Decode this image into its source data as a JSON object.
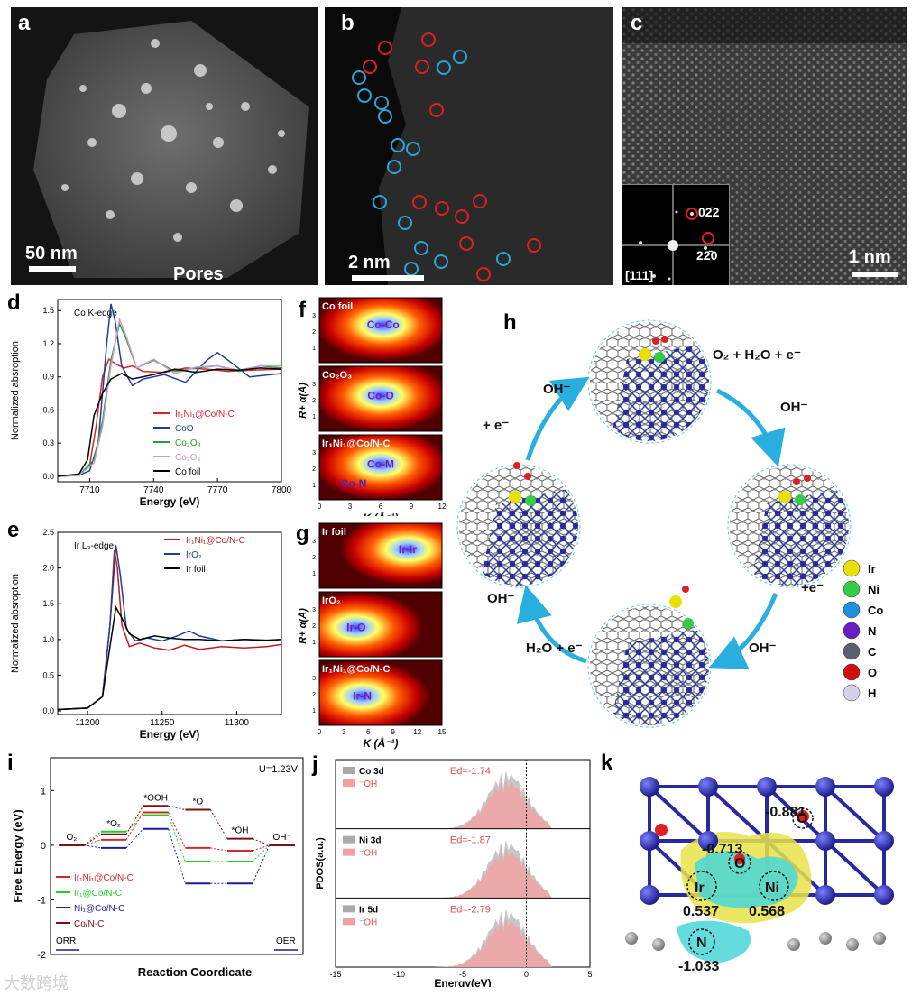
{
  "panels": {
    "a": {
      "label": "a",
      "scale": "50 nm",
      "pores": "Pores"
    },
    "b": {
      "label": "b",
      "scale": "2 nm"
    },
    "c": {
      "label": "c",
      "scale": "1 nm",
      "inset_axis": "[111]",
      "spot1": "02̄2",
      "spot2": "22̄0"
    },
    "d": {
      "label": "d",
      "edge": "Co K-edge",
      "ylabel": "Normalized absroption",
      "xlabel": "Energy (eV)",
      "xticks": [
        "7710",
        "7740",
        "7770",
        "7800"
      ],
      "yticks": [
        "0.0",
        "0.3",
        "0.6",
        "0.9",
        "1.2",
        "1.5"
      ],
      "legend": [
        "Ir₁Ni₁@Co/N-C",
        "CoO",
        "Co₃O₄",
        "Co₂O₃",
        "Co foil"
      ]
    },
    "e": {
      "label": "e",
      "edge": "Ir L₃-edge",
      "ylabel": "Normalized absroption",
      "xlabel": "Energy (eV)",
      "xticks": [
        "11200",
        "11250",
        "11300"
      ],
      "yticks": [
        "0.0",
        "0.5",
        "1.0",
        "1.5",
        "2.0",
        "2.5"
      ],
      "legend": [
        "Ir₁Ni₁@Co/N-C",
        "IrO₂",
        "Ir foil"
      ]
    },
    "f": {
      "label": "f",
      "ylabel": "R+ α(Å)",
      "xlabel": "K (Å⁻¹)",
      "xticks": [
        "0",
        "3",
        "6",
        "9",
        "12"
      ],
      "maps": [
        {
          "title": "Co foil",
          "peak": "Co-Co"
        },
        {
          "title": "Co₂O₃",
          "peak": "Co-O"
        },
        {
          "title": "Ir₁Ni₁@Co/N-C",
          "peak": "Co-M",
          "peak2": "Co-N"
        }
      ]
    },
    "g": {
      "label": "g",
      "ylabel": "R+ α(Å)",
      "xlabel": "K (Å⁻¹)",
      "xticks": [
        "0",
        "3",
        "6",
        "9",
        "12",
        "15"
      ],
      "maps": [
        {
          "title": "Ir foil",
          "peak": "Ir-Ir"
        },
        {
          "title": "IrO₂",
          "peak": "Ir-O"
        },
        {
          "title": "Ir₁Ni₁@Co/N-C",
          "peak": "Ir-N"
        }
      ]
    },
    "h": {
      "label": "h",
      "steps": [
        "O₂ + H₂O + e⁻",
        "OH⁻",
        "+e⁻",
        "OH⁻",
        "H₂O + e⁻",
        "OH⁻",
        "+ e⁻",
        "OH⁻"
      ],
      "legend": [
        "Ir",
        "Ni",
        "Co",
        "N",
        "C",
        "O",
        "H"
      ]
    },
    "i": {
      "label": "i",
      "potential": "U=1.23V",
      "ylabel": "Free Energy (eV)",
      "xlabel": "Reaction Coordicate",
      "yticks": [
        "1",
        "0",
        "-1",
        "-2"
      ],
      "species": [
        "O₂",
        "*O₂",
        "*OOH",
        "*O",
        "*OH",
        "OH⁻"
      ],
      "orr": "ORR",
      "oer": "OER",
      "legend": [
        "Ir₁Ni₁@Co/N-C",
        "Ir₁@Co/N-C",
        "Ni₁@Co/N-C",
        "Co/N-C"
      ]
    },
    "j": {
      "label": "j",
      "ylabel": "PDOS(a.u.)",
      "xlabel": "Energy(eV)",
      "xticks": [
        "-15",
        "-10",
        "-5",
        "0",
        "5"
      ],
      "rows": [
        {
          "orb": "Co 3d",
          "ads": "⁻OH",
          "ed": "Ed=-1.74"
        },
        {
          "orb": "Ni 3d",
          "ads": "⁻OH",
          "ed": "Ed=-1.87"
        },
        {
          "orb": "Ir 5d",
          "ads": "⁻OH",
          "ed": "Ed=-2.79"
        }
      ]
    },
    "k": {
      "label": "k",
      "charges": [
        "-0.881",
        "-0.713",
        "0.537",
        "0.568",
        "-1.033"
      ],
      "atoms": [
        "Ir",
        "Ni",
        "O",
        "O",
        "N"
      ]
    }
  },
  "watermark": "大数跨境",
  "chart_data": [
    {
      "type": "line",
      "title": "Co K-edge",
      "xlabel": "Energy (eV)",
      "ylabel": "Normalized absroption",
      "xlim": [
        7695,
        7800
      ],
      "ylim": [
        -0.05,
        1.6
      ],
      "series": [
        {
          "name": "Ir₁Ni₁@Co/N-C",
          "color": "#d62728",
          "x": [
            7695,
            7705,
            7710,
            7713,
            7716,
            7719,
            7722,
            7726,
            7730,
            7735,
            7745,
            7755,
            7765,
            7775,
            7785,
            7800
          ],
          "y": [
            0,
            0.01,
            0.1,
            0.45,
            0.9,
            1.06,
            1.02,
            0.98,
            1.0,
            0.95,
            0.94,
            0.98,
            0.97,
            0.95,
            0.96,
            0.97
          ]
        },
        {
          "name": "CoO",
          "color": "#1f3c9c",
          "x": [
            7695,
            7705,
            7710,
            7714,
            7718,
            7720,
            7722,
            7725,
            7730,
            7735,
            7745,
            7755,
            7765,
            7770,
            7775,
            7785,
            7800
          ],
          "y": [
            0,
            0.01,
            0.05,
            0.3,
            1.2,
            1.56,
            1.4,
            1.0,
            0.82,
            0.88,
            0.92,
            0.85,
            1.05,
            1.12,
            1.05,
            0.9,
            0.93
          ]
        },
        {
          "name": "Co₃O₄",
          "color": "#2ca02c",
          "x": [
            7695,
            7705,
            7712,
            7716,
            7720,
            7724,
            7727,
            7732,
            7740,
            7750,
            7760,
            7770,
            7780,
            7790,
            7800
          ],
          "y": [
            0,
            0.01,
            0.15,
            0.5,
            1.05,
            1.38,
            1.25,
            0.98,
            1.05,
            0.95,
            0.98,
            1.0,
            0.95,
            1.0,
            0.98
          ]
        },
        {
          "name": "Co₂O₃",
          "color": "#c59ee0",
          "x": [
            7695,
            7705,
            7712,
            7716,
            7720,
            7724,
            7727,
            7732,
            7740,
            7750,
            7760,
            7770,
            7780,
            7790,
            7800
          ],
          "y": [
            0,
            0.01,
            0.12,
            0.45,
            1.0,
            1.42,
            1.28,
            0.98,
            1.06,
            0.93,
            0.99,
            1.0,
            0.96,
            1.0,
            1.0
          ]
        },
        {
          "name": "Co foil",
          "color": "#000000",
          "x": [
            7695,
            7705,
            7709,
            7712,
            7716,
            7720,
            7725,
            7730,
            7740,
            7750,
            7760,
            7770,
            7780,
            7790,
            7800
          ],
          "y": [
            0,
            0.02,
            0.15,
            0.55,
            0.75,
            0.88,
            0.93,
            0.88,
            0.92,
            0.97,
            0.94,
            0.97,
            0.96,
            0.98,
            0.97
          ]
        }
      ]
    },
    {
      "type": "line",
      "title": "Ir L₃-edge",
      "xlabel": "Energy (eV)",
      "ylabel": "Normalized absroption",
      "xlim": [
        11180,
        11330
      ],
      "ylim": [
        -0.05,
        2.5
      ],
      "series": [
        {
          "name": "Ir₁Ni₁@Co/N-C",
          "color": "#b81d1d",
          "x": [
            11180,
            11200,
            11210,
            11215,
            11218,
            11220,
            11223,
            11228,
            11235,
            11245,
            11255,
            11265,
            11275,
            11290,
            11305,
            11320,
            11330
          ],
          "y": [
            0.02,
            0.04,
            0.2,
            1.2,
            2.25,
            2.0,
            1.2,
            0.9,
            0.95,
            0.88,
            0.85,
            0.92,
            0.86,
            0.9,
            0.88,
            0.9,
            0.93
          ]
        },
        {
          "name": "IrO₂",
          "color": "#1f3c9c",
          "x": [
            11180,
            11200,
            11210,
            11215,
            11219,
            11222,
            11226,
            11232,
            11240,
            11250,
            11260,
            11268,
            11275,
            11290,
            11305,
            11320,
            11330
          ],
          "y": [
            0.02,
            0.04,
            0.2,
            1.2,
            2.32,
            1.9,
            1.15,
            0.98,
            1.02,
            0.98,
            1.05,
            1.12,
            1.05,
            0.98,
            1.0,
            0.98,
            1.0
          ]
        },
        {
          "name": "Ir foil",
          "color": "#000000",
          "x": [
            11180,
            11200,
            11210,
            11215,
            11219,
            11223,
            11228,
            11235,
            11245,
            11255,
            11265,
            11275,
            11290,
            11305,
            11320,
            11330
          ],
          "y": [
            0.02,
            0.04,
            0.2,
            0.9,
            1.45,
            1.3,
            1.08,
            1.0,
            1.05,
            1.02,
            1.0,
            1.0,
            0.98,
            1.0,
            0.99,
            1.0
          ]
        }
      ]
    },
    {
      "type": "line",
      "title": "",
      "xlabel": "Reaction Coordicate",
      "ylabel": "Free Energy (eV)",
      "ylim": [
        -2,
        1.6
      ],
      "categories": [
        "O₂",
        "*O₂",
        "*OOH",
        "*O",
        "*OH",
        "OH⁻"
      ],
      "series": [
        {
          "name": "Ir₁Ni₁@Co/N-C",
          "color": "#d62728",
          "values": [
            0,
            0.1,
            0.6,
            -0.05,
            -0.1,
            0
          ]
        },
        {
          "name": "Ir₁@Co/N-C",
          "color": "#22cc22",
          "values": [
            0,
            0.25,
            0.55,
            -0.3,
            -0.3,
            0
          ]
        },
        {
          "name": "Ni₁@Co/N-C",
          "color": "#1c1c9c",
          "values": [
            0,
            -0.05,
            0.3,
            -0.7,
            -0.7,
            0
          ]
        },
        {
          "name": "Co/N-C",
          "color": "#7a1010",
          "values": [
            0,
            0.2,
            0.72,
            0.65,
            0.12,
            0
          ]
        }
      ]
    }
  ]
}
